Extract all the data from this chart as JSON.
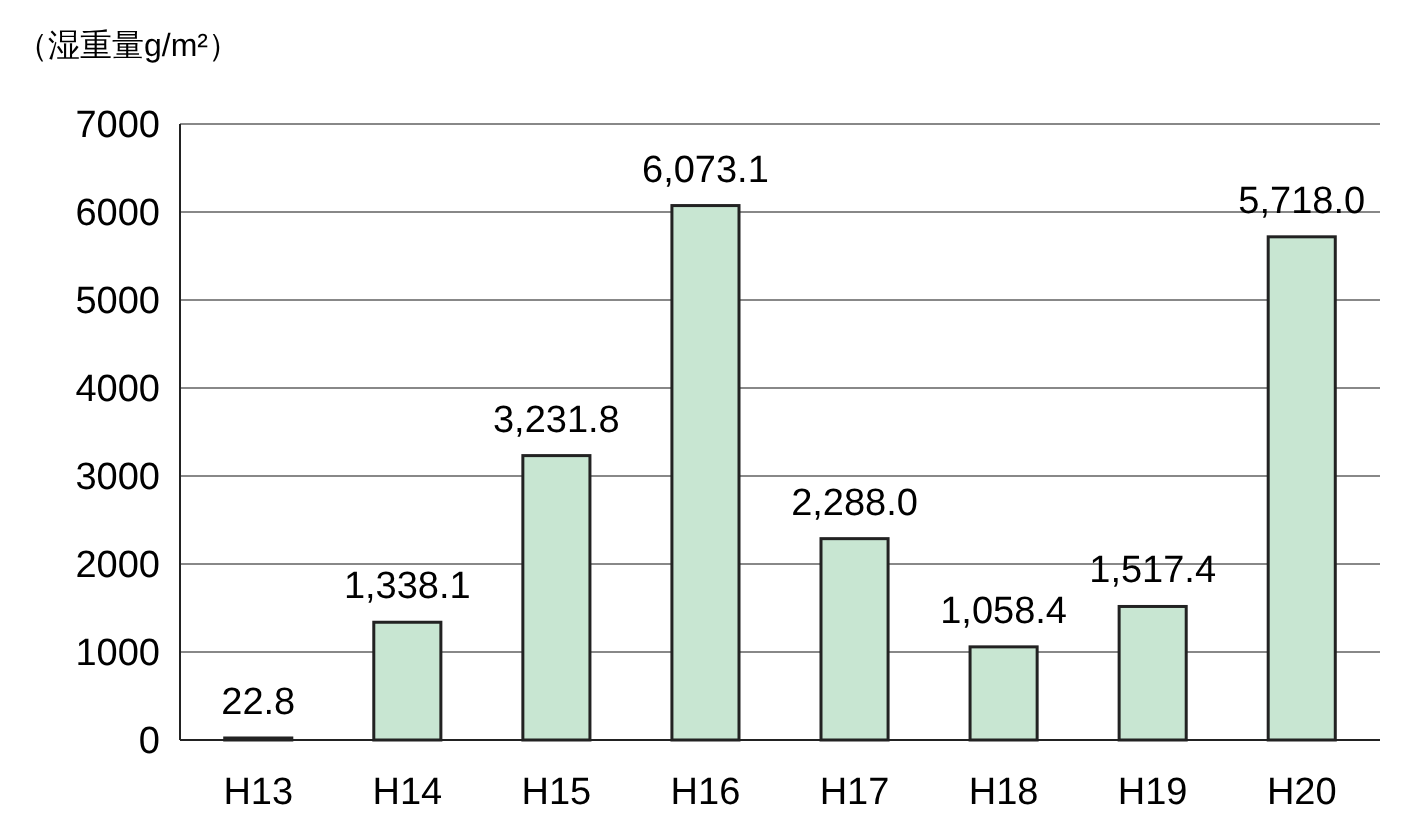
{
  "chart_data": {
    "type": "bar",
    "ylabel": "（湿重量g/m²）",
    "categories": [
      "H13",
      "H14",
      "H15",
      "H16",
      "H17",
      "H18",
      "H19",
      "H20"
    ],
    "values": [
      22.8,
      1338.1,
      3231.8,
      6073.1,
      2288.0,
      1058.4,
      1517.4,
      5718.0
    ],
    "value_labels": [
      "22.8",
      "1,338.1",
      "3,231.8",
      "6,073.1",
      "2,288.0",
      "1,058.4",
      "1,517.4",
      "5,718.0"
    ],
    "color": "#c8e6d2",
    "ylim": [
      0,
      7000
    ],
    "yticks": [
      0,
      1000,
      2000,
      3000,
      4000,
      5000,
      6000,
      7000
    ],
    "grid": "y"
  }
}
